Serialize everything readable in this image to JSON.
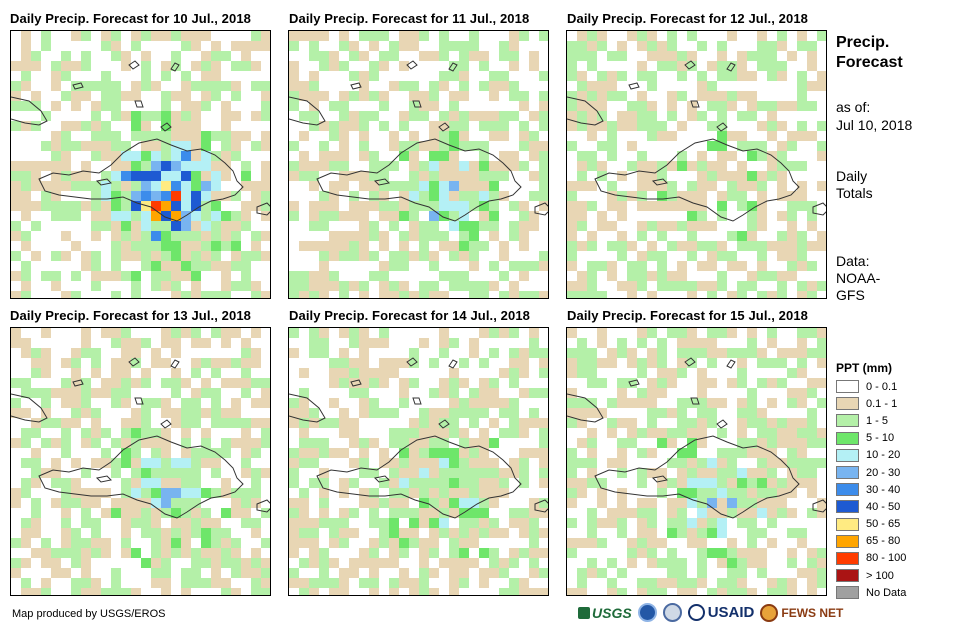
{
  "panels": [
    {
      "title": "Daily Precip. Forecast for 10 Jul., 2018",
      "intensity": 1.0
    },
    {
      "title": "Daily Precip. Forecast for 11 Jul., 2018",
      "intensity": 0.35
    },
    {
      "title": "Daily Precip. Forecast for 12 Jul., 2018",
      "intensity": 0.2
    },
    {
      "title": "Daily Precip. Forecast for 13 Jul., 2018",
      "intensity": 0.45
    },
    {
      "title": "Daily Precip. Forecast for 14 Jul., 2018",
      "intensity": 0.4
    },
    {
      "title": "Daily Precip. Forecast for 15 Jul., 2018",
      "intensity": 0.4
    }
  ],
  "sidebar": {
    "title_line1": "Precip.",
    "title_line2": "Forecast",
    "asof_label": "as of:",
    "asof_date": "Jul 10, 2018",
    "totals_line1": "Daily",
    "totals_line2": "Totals",
    "data_line1": "Data:",
    "data_line2": "NOAA-",
    "data_line3": "GFS"
  },
  "legend": {
    "title": "PPT (mm)",
    "items": [
      {
        "label": "0 - 0.1",
        "color": "#ffffff"
      },
      {
        "label": "0.1 - 1",
        "color": "#e8d6b4"
      },
      {
        "label": "1 - 5",
        "color": "#b4f0a8"
      },
      {
        "label": "5 - 10",
        "color": "#6ee66a"
      },
      {
        "label": "10 - 20",
        "color": "#b4f0f5"
      },
      {
        "label": "20 - 30",
        "color": "#78b4f0"
      },
      {
        "label": "30 - 40",
        "color": "#3c8ceb"
      },
      {
        "label": "40 - 50",
        "color": "#1e5ad2"
      },
      {
        "label": "50 - 65",
        "color": "#ffeb82"
      },
      {
        "label": "65 - 80",
        "color": "#ffa500"
      },
      {
        "label": "80 - 100",
        "color": "#ff3c00"
      },
      {
        "label": "> 100",
        "color": "#aa1414"
      },
      {
        "label": "No Data",
        "color": "#a0a0a0"
      }
    ]
  },
  "credit": "Map produced by USGS/EROS",
  "logos": {
    "usgs": "USGS",
    "usaid": "USAID",
    "fews": "FEWS NET"
  }
}
